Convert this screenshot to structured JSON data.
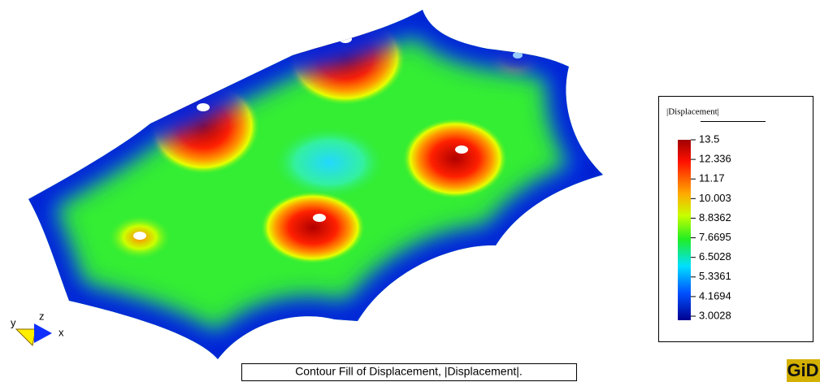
{
  "legend": {
    "title": "|Displacement|",
    "values": [
      "13.5",
      "12.336",
      "11.17",
      "10.003",
      "8.8362",
      "7.6695",
      "6.5028",
      "5.3361",
      "4.1694",
      "3.0028"
    ]
  },
  "caption": "Contour Fill of Displacement, |Displacement|.",
  "axes": {
    "y": "y",
    "z": "z",
    "x": "x"
  },
  "logo": "GiD"
}
